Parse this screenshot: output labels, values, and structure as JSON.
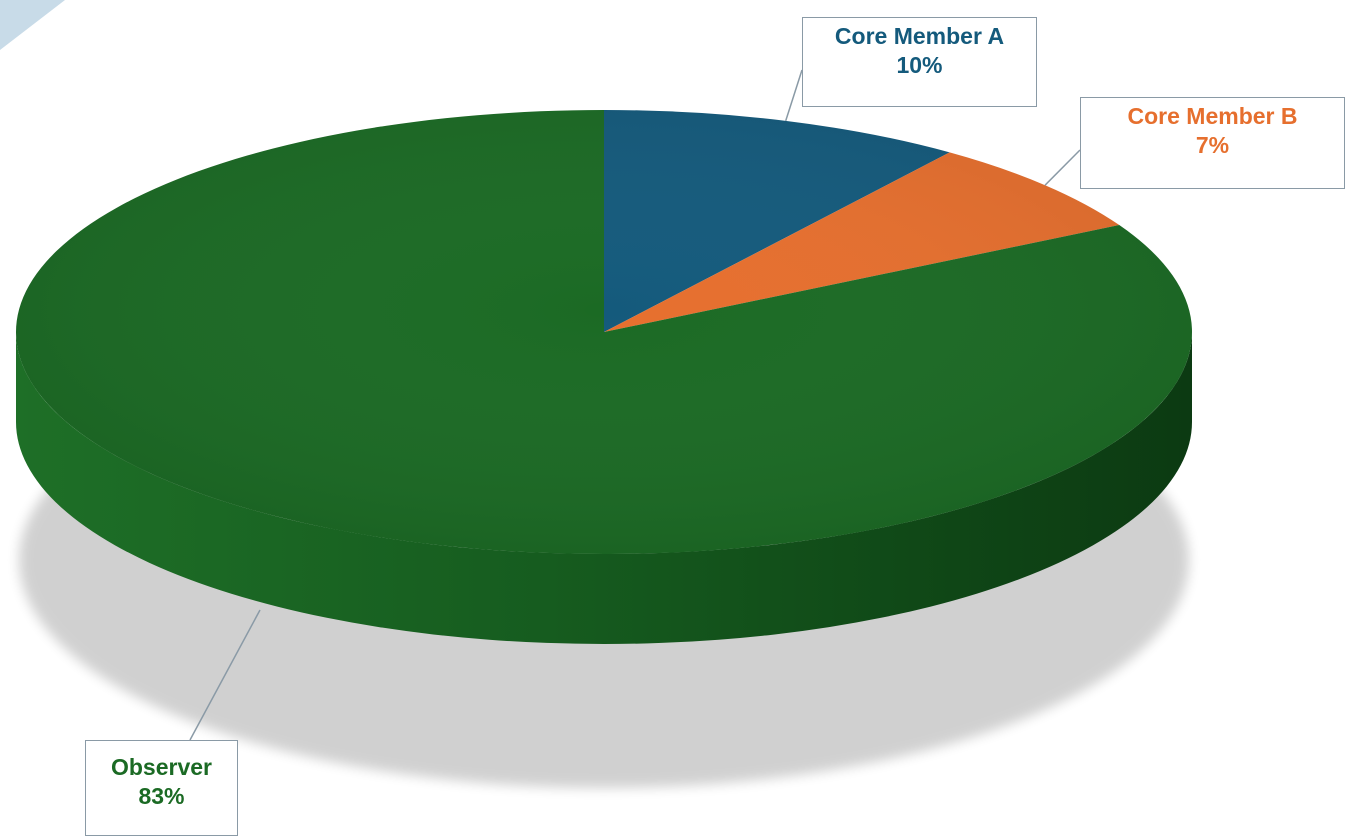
{
  "chart_data": {
    "type": "pie",
    "title": "",
    "slices": [
      {
        "label": "Core Member A",
        "value": 10,
        "value_label": "10%",
        "color": "#145a7c"
      },
      {
        "label": "Core Member B",
        "value": 7,
        "value_label": "7%",
        "color": "#e66f2e"
      },
      {
        "label": "Observer",
        "value": 83,
        "value_label": "83%",
        "color": "#1b6a24"
      }
    ],
    "style": "3d",
    "legend": "none",
    "data_labels": "callouts"
  },
  "decor": {
    "corner_accent_color": "#c8dbe8"
  }
}
